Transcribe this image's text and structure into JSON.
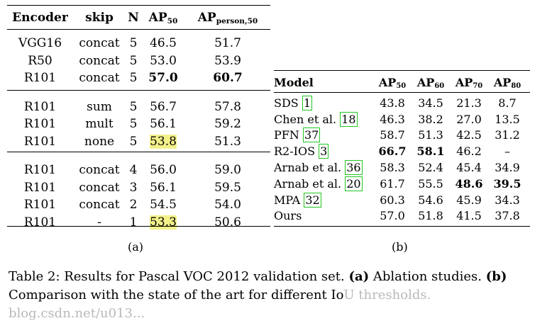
{
  "table_a": {
    "headers": [
      "Encoder",
      "skip",
      "N",
      "AP",
      "AP"
    ],
    "header_subs": [
      "",
      "",
      "",
      "50",
      "person,50"
    ],
    "groups": [
      [
        [
          "VGG16",
          "concat",
          "5",
          "46.5",
          "51.7"
        ],
        [
          "R50",
          "concat",
          "5",
          "53.0",
          "53.9"
        ],
        [
          "R101",
          "concat",
          "5",
          "57.0",
          "60.7"
        ]
      ],
      [
        [
          "R101",
          "sum",
          "5",
          "56.7",
          "57.8"
        ],
        [
          "R101",
          "mult",
          "5",
          "56.1",
          "59.2"
        ],
        [
          "R101",
          "none",
          "5",
          "53.8",
          "51.3"
        ]
      ],
      [
        [
          "R101",
          "concat",
          "4",
          "56.0",
          "59.0"
        ],
        [
          "R101",
          "concat",
          "3",
          "56.1",
          "59.5"
        ],
        [
          "R101",
          "concat",
          "2",
          "54.5",
          "54.0"
        ],
        [
          "R101",
          "-",
          "1",
          "53.3",
          "50.6"
        ]
      ]
    ],
    "label": "(a)"
  },
  "table_b": {
    "headers": [
      "Model",
      "AP",
      "AP",
      "AP",
      "AP"
    ],
    "header_subs": [
      "",
      "50",
      "60",
      "70",
      "80"
    ],
    "rows": [
      {
        "model": "SDS",
        "cite": "1",
        "values": [
          "43.8",
          "34.5",
          "21.3",
          "8.7"
        ]
      },
      {
        "model": "Chen et al.",
        "cite": "18",
        "values": [
          "46.3",
          "38.2",
          "27.0",
          "13.5"
        ]
      },
      {
        "model": "PFN",
        "cite": "37",
        "values": [
          "58.7",
          "51.3",
          "42.5",
          "31.2"
        ]
      },
      {
        "model": "R2-IOS",
        "cite": "3",
        "values": [
          "66.7",
          "58.1",
          "46.2",
          "–"
        ]
      },
      {
        "model": "Arnab et al.",
        "cite": "36",
        "values": [
          "58.3",
          "52.4",
          "45.4",
          "34.9"
        ]
      },
      {
        "model": "Arnab et al.",
        "cite": "20",
        "values": [
          "61.7",
          "55.5",
          "48.6",
          "39.5"
        ]
      },
      {
        "model": "MPA",
        "cite": "32",
        "values": [
          "60.3",
          "54.6",
          "45.9",
          "34.3"
        ]
      },
      {
        "model": "Ours",
        "cite": "",
        "values": [
          "57.0",
          "51.8",
          "41.5",
          "37.8"
        ]
      }
    ],
    "label": "(b)"
  },
  "caption": {
    "line1_a": "Table 2: Results for Pascal VOC 2012 validation set. ",
    "a_marker": "(a)",
    "line1_b": " Ablation studies. ",
    "b_marker": "(b)",
    "line2": "Comparison with the state of the art for different Io",
    "watermark": "U thresholds. blog.csdn.net/u013..."
  }
}
